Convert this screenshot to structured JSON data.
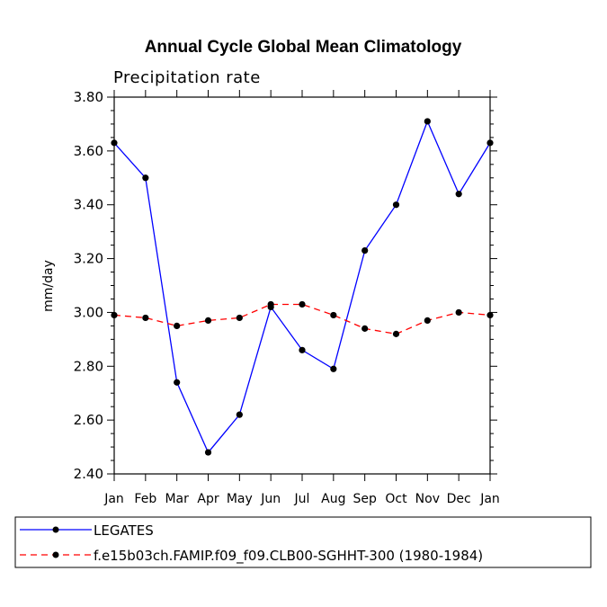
{
  "chart_data": {
    "type": "line",
    "title": "Annual Cycle Global Mean Climatology",
    "subtitle": "Precipitation rate",
    "xlabel": "",
    "ylabel": "mm/day",
    "ylim": [
      2.4,
      3.8
    ],
    "yticks": [
      "2.40",
      "2.60",
      "2.80",
      "3.00",
      "3.20",
      "3.40",
      "3.60",
      "3.80"
    ],
    "categories": [
      "Jan",
      "Feb",
      "Mar",
      "Apr",
      "May",
      "Jun",
      "Jul",
      "Aug",
      "Sep",
      "Oct",
      "Nov",
      "Dec",
      "Jan"
    ],
    "grid": false,
    "legend_position": "bottom",
    "series": [
      {
        "name": "LEGATES",
        "color": "#0000ff",
        "dash": "solid",
        "values": [
          3.63,
          3.5,
          2.74,
          2.48,
          2.62,
          3.02,
          2.86,
          2.79,
          3.23,
          3.4,
          3.71,
          3.44,
          3.63
        ]
      },
      {
        "name": "f.e15b03ch.FAMIP.f09_f09.CLB00-SGHHT-300 (1980-1984)",
        "color": "#ff0000",
        "dash": "dashed",
        "values": [
          2.99,
          2.98,
          2.95,
          2.97,
          2.98,
          3.03,
          3.03,
          2.99,
          2.94,
          2.92,
          2.97,
          3.0,
          2.99
        ]
      }
    ]
  }
}
